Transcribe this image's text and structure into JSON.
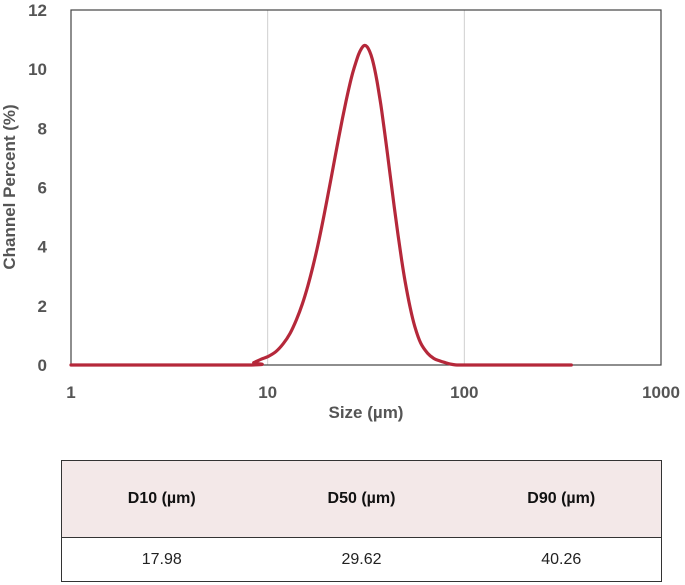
{
  "chart_data": {
    "type": "line",
    "title": "",
    "xlabel": "Size (µm)",
    "ylabel": "Channel Percent (%)",
    "x_scale": "log",
    "xlim": [
      1,
      1000
    ],
    "ylim": [
      0,
      12
    ],
    "x_ticks": [
      "1",
      "10",
      "100",
      "1000"
    ],
    "y_ticks": [
      "0",
      "2",
      "4",
      "6",
      "8",
      "10",
      "12"
    ],
    "grid": "vertical",
    "series": [
      {
        "color": "#b5283a",
        "x": [
          1,
          7.9,
          8.5,
          9.3,
          10,
          11,
          12,
          13,
          14,
          15,
          16,
          17,
          18,
          19,
          20,
          21,
          22,
          23,
          24,
          25,
          26,
          27,
          28,
          29,
          30,
          31,
          32,
          33,
          34,
          35,
          36,
          37,
          38,
          40,
          42,
          44,
          46,
          48,
          50,
          53,
          56,
          60,
          65,
          70,
          75,
          80,
          85,
          90,
          95,
          100,
          150,
          200,
          300,
          350
        ],
        "y": [
          0,
          0,
          0.08,
          0.2,
          0.28,
          0.45,
          0.72,
          1.07,
          1.53,
          2.06,
          2.67,
          3.34,
          4.05,
          4.8,
          5.56,
          6.3,
          7.02,
          7.7,
          8.33,
          8.9,
          9.41,
          9.85,
          10.2,
          10.5,
          10.7,
          10.8,
          10.76,
          10.6,
          10.35,
          10.0,
          9.58,
          9.1,
          8.6,
          7.5,
          6.4,
          5.35,
          4.4,
          3.55,
          2.82,
          1.95,
          1.3,
          0.74,
          0.4,
          0.22,
          0.14,
          0.08,
          0.03,
          0.005,
          0,
          0,
          0,
          0,
          0,
          0
        ]
      }
    ]
  },
  "stats_table": {
    "headers": [
      "D10 (µm)",
      "D50 (µm)",
      "D90 (µm)"
    ],
    "values": [
      "17.98",
      "29.62",
      "40.26"
    ]
  }
}
